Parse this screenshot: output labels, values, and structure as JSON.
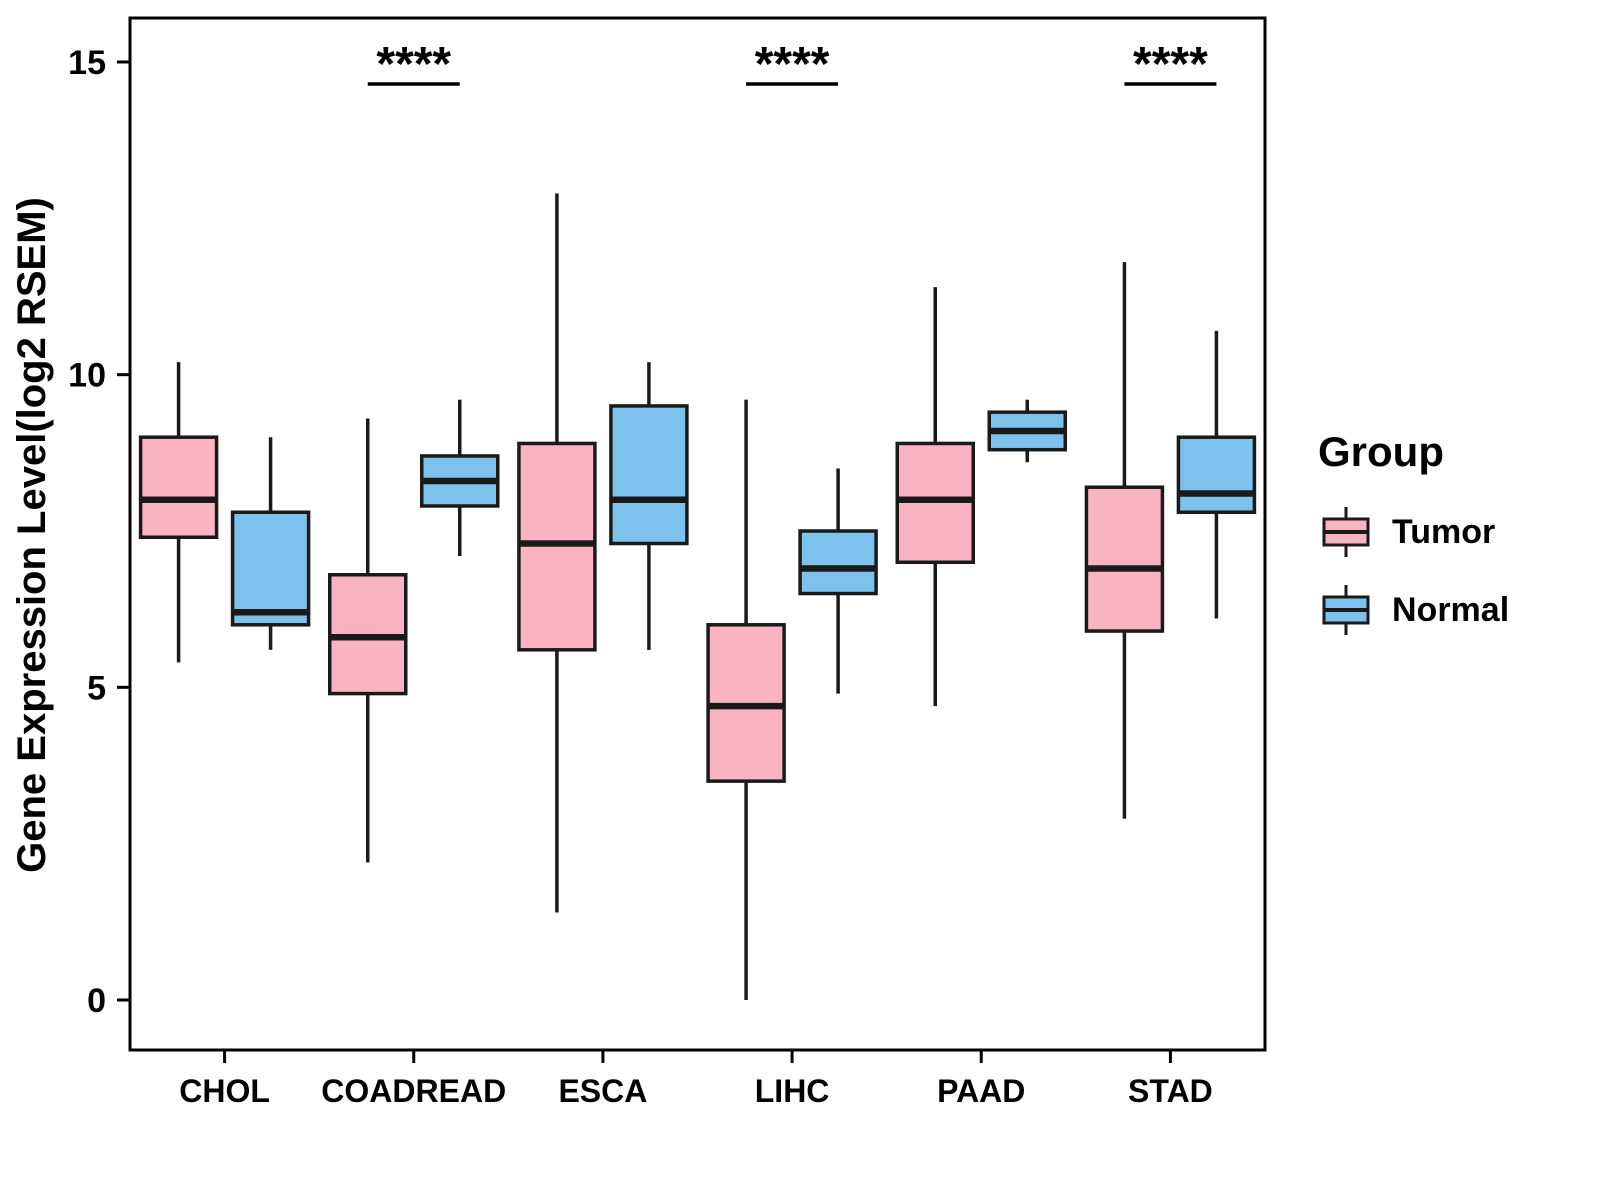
{
  "chart_data": {
    "type": "boxplot",
    "title": "",
    "xlabel": "",
    "ylabel": "Gene Expression Level(log2 RSEM)",
    "ylim": [
      -0.8,
      15.7
    ],
    "yticks": [
      0,
      5,
      10,
      15
    ],
    "grid": false,
    "legend_position": "right",
    "categories": [
      "CHOL",
      "COADREAD",
      "ESCA",
      "LIHC",
      "PAAD",
      "STAD"
    ],
    "series": [
      {
        "name": "Tumor",
        "color": "#F9B3C2",
        "boxes": [
          {
            "low": 5.4,
            "q1": 7.4,
            "median": 8.0,
            "q3": 9.0,
            "high": 10.2
          },
          {
            "low": 2.2,
            "q1": 4.9,
            "median": 5.8,
            "q3": 6.8,
            "high": 9.3
          },
          {
            "low": 1.4,
            "q1": 5.6,
            "median": 7.3,
            "q3": 8.9,
            "high": 12.9
          },
          {
            "low": 0.0,
            "q1": 3.5,
            "median": 4.7,
            "q3": 6.0,
            "high": 9.6
          },
          {
            "low": 4.7,
            "q1": 7.0,
            "median": 8.0,
            "q3": 8.9,
            "high": 11.4
          },
          {
            "low": 2.9,
            "q1": 5.9,
            "median": 6.9,
            "q3": 8.2,
            "high": 11.8
          }
        ]
      },
      {
        "name": "Normal",
        "color": "#7DC2EC",
        "boxes": [
          {
            "low": 5.6,
            "q1": 6.0,
            "median": 6.2,
            "q3": 7.8,
            "high": 9.0
          },
          {
            "low": 7.1,
            "q1": 7.9,
            "median": 8.3,
            "q3": 8.7,
            "high": 9.6
          },
          {
            "low": 5.6,
            "q1": 7.3,
            "median": 8.0,
            "q3": 9.5,
            "high": 10.2
          },
          {
            "low": 4.9,
            "q1": 6.5,
            "median": 6.9,
            "q3": 7.5,
            "high": 8.5
          },
          {
            "low": 8.6,
            "q1": 8.8,
            "median": 9.1,
            "q3": 9.4,
            "high": 9.6
          },
          {
            "low": 6.1,
            "q1": 7.8,
            "median": 8.1,
            "q3": 9.0,
            "high": 10.7
          }
        ]
      }
    ],
    "significance": [
      {
        "category": "COADREAD",
        "label": "****"
      },
      {
        "category": "LIHC",
        "label": "****"
      },
      {
        "category": "STAD",
        "label": "****"
      }
    ],
    "legend": {
      "title": "Group",
      "entries": [
        "Tumor",
        "Normal"
      ]
    },
    "style": {
      "box_stroke": "#1A1A1A",
      "axis_color": "#000000"
    }
  }
}
